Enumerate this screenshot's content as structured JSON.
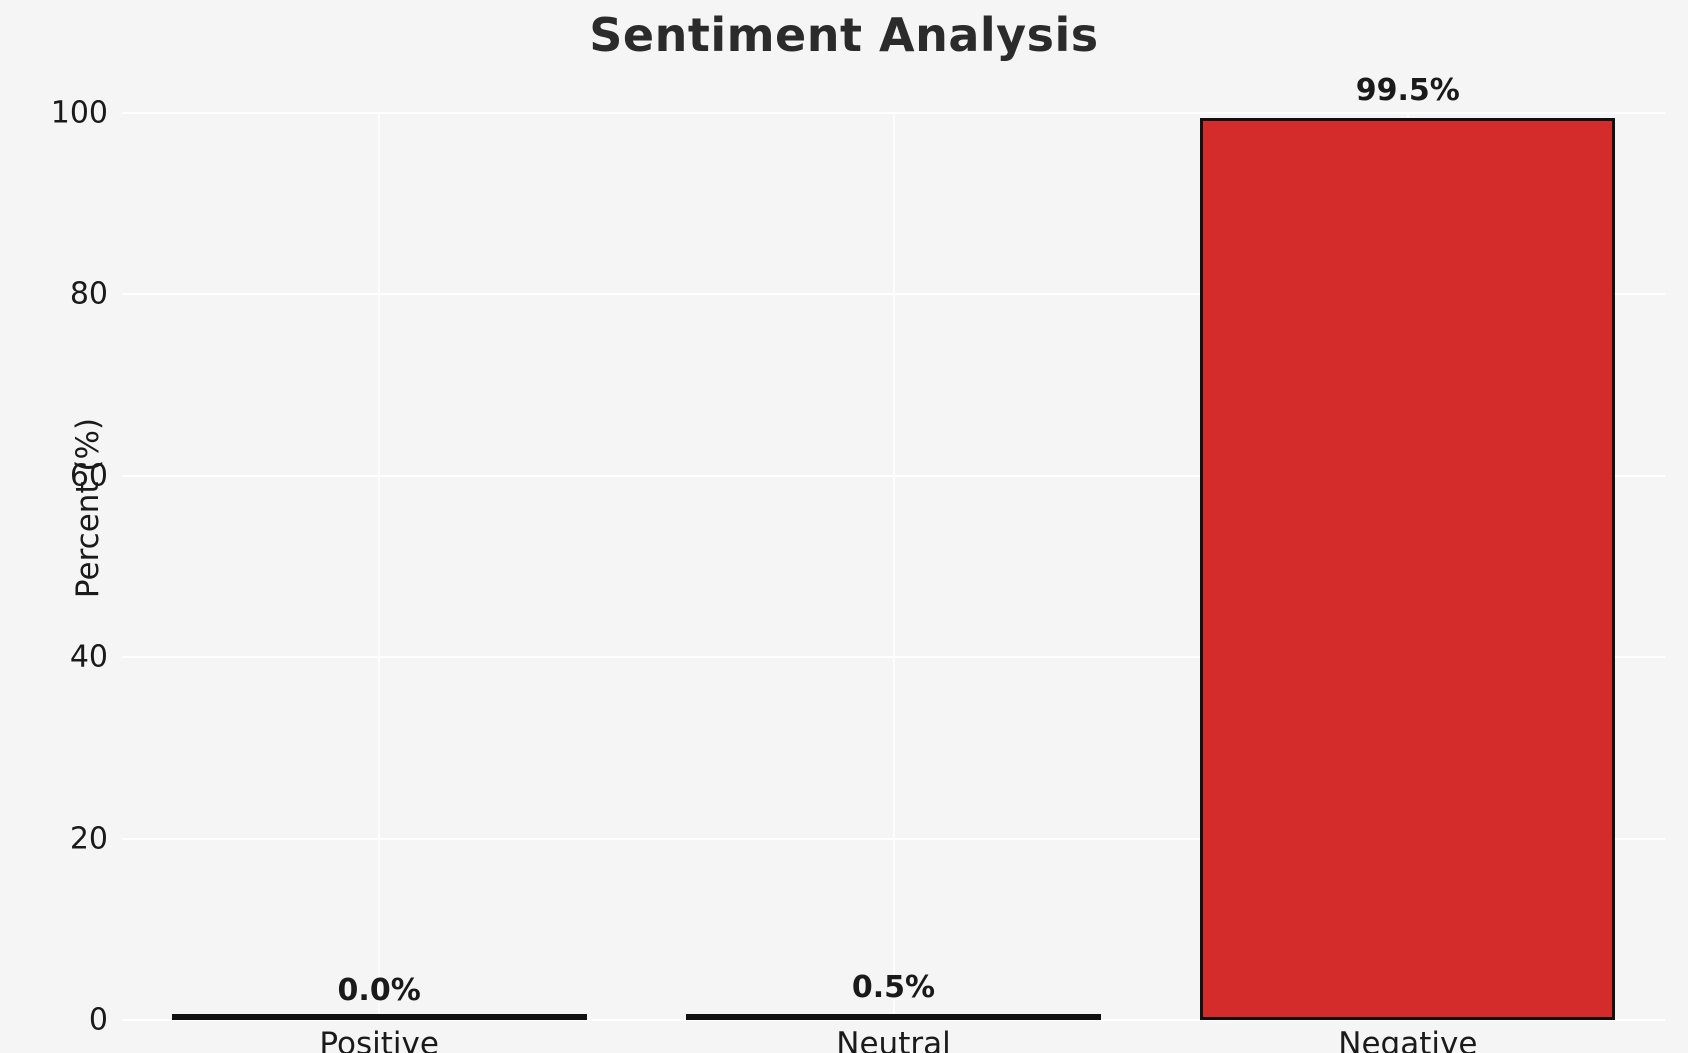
{
  "chart_data": {
    "type": "bar",
    "title": "Sentiment Analysis",
    "ylabel": "Percent (%)",
    "xlabel": "",
    "categories": [
      "Positive",
      "Neutral",
      "Negative"
    ],
    "values": [
      0.0,
      0.5,
      99.5
    ],
    "value_labels": [
      "0.0%",
      "0.5%",
      "99.5%"
    ],
    "bar_colors": [
      "#4caf50",
      "#f1c40f",
      "#d42b2b"
    ],
    "bar_edge_color": "#111111",
    "yticks": [
      0,
      20,
      40,
      60,
      80,
      100
    ],
    "ylim": [
      0,
      100
    ],
    "grid": "on",
    "background_color": "#f5f5f6",
    "gridline_color": "#ffffff",
    "legend": "none"
  }
}
